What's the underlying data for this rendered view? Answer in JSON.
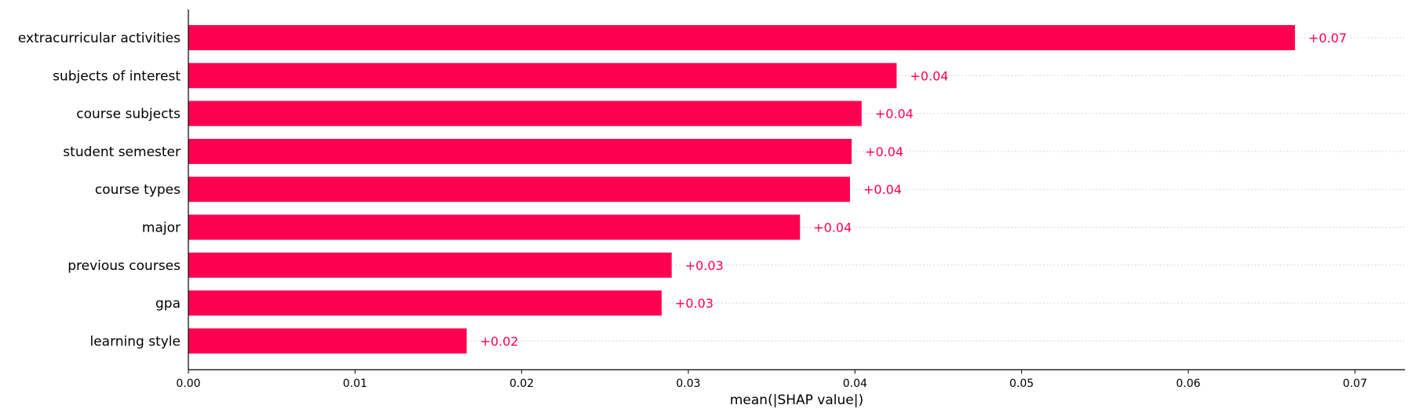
{
  "chart_data": {
    "type": "bar",
    "orientation": "horizontal",
    "title": "",
    "xlabel": "mean(|SHAP value|)",
    "ylabel": "",
    "xlim": [
      0,
      0.073
    ],
    "x_ticks": [
      "0.00",
      "0.01",
      "0.02",
      "0.03",
      "0.04",
      "0.05",
      "0.06",
      "0.07"
    ],
    "grid": "dotted horizontal guide per bar",
    "legend": "none",
    "bar_color": "#ff0051",
    "label_color": "#ff0051",
    "categories": [
      "extracurricular activities",
      "subjects of interest",
      "course subjects",
      "student semester",
      "course types",
      "major",
      "previous courses",
      "gpa",
      "learning style"
    ],
    "values": [
      0.0664,
      0.0425,
      0.0404,
      0.0398,
      0.0397,
      0.0367,
      0.029,
      0.0284,
      0.0167
    ],
    "value_labels": [
      "+0.07",
      "+0.04",
      "+0.04",
      "+0.04",
      "+0.04",
      "+0.04",
      "+0.03",
      "+0.03",
      "+0.02"
    ]
  }
}
